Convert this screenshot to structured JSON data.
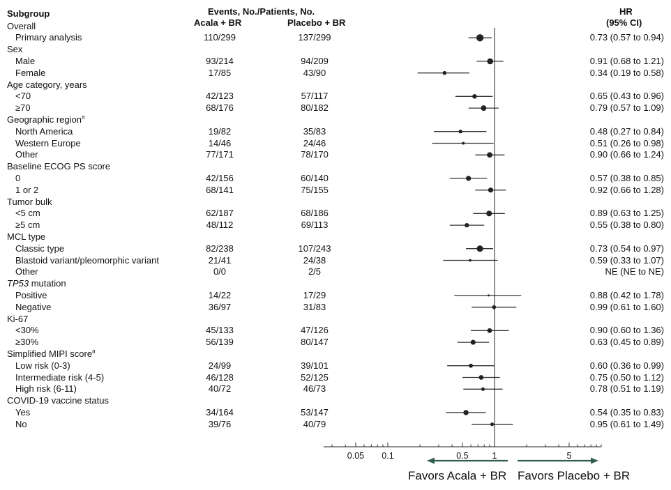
{
  "headers": {
    "subgroup": "Subgroup",
    "events": "Events, No./Patients, No.",
    "acala": "Acala + BR",
    "placebo": "Placebo + BR",
    "hr": "HR",
    "ci": "(95% CI)"
  },
  "footer": {
    "left": "Favors Acala + BR",
    "right": "Favors Placebo + BR"
  },
  "chart_data": {
    "type": "forest",
    "x_scale": "log",
    "x_ticks": [
      {
        "value": 0.05,
        "label": "0.05"
      },
      {
        "value": 0.1,
        "label": "0.1"
      },
      {
        "value": 0.5,
        "label": "0.5"
      },
      {
        "value": 1,
        "label": "1"
      },
      {
        "value": 5,
        "label": "5"
      }
    ],
    "xlim": [
      0.025,
      10
    ],
    "reference_line": 1,
    "rows": [
      {
        "label": "Overall",
        "group": true
      },
      {
        "label": "Primary analysis",
        "acala": "110/299",
        "placebo": "137/299",
        "hr": 0.73,
        "lo": 0.57,
        "hi": 0.94,
        "hr_text": "0.73 (0.57 to 0.94)",
        "n": 598
      },
      {
        "label": "Sex",
        "group": true
      },
      {
        "label": "Male",
        "acala": "93/214",
        "placebo": "94/209",
        "hr": 0.91,
        "lo": 0.68,
        "hi": 1.21,
        "hr_text": "0.91 (0.68 to 1.21)",
        "n": 423
      },
      {
        "label": "Female",
        "acala": "17/85",
        "placebo": "43/90",
        "hr": 0.34,
        "lo": 0.19,
        "hi": 0.58,
        "hr_text": "0.34 (0.19 to 0.58)",
        "n": 175
      },
      {
        "label": "Age category, years",
        "group": true
      },
      {
        "label": "<70",
        "acala": "42/123",
        "placebo": "57/117",
        "hr": 0.65,
        "lo": 0.43,
        "hi": 0.96,
        "hr_text": "0.65 (0.43 to 0.96)",
        "n": 240
      },
      {
        "label": "≥70",
        "acala": "68/176",
        "placebo": "80/182",
        "hr": 0.79,
        "lo": 0.57,
        "hi": 1.09,
        "hr_text": "0.79 (0.57 to 1.09)",
        "n": 358
      },
      {
        "label": "Geographic region",
        "sup": "a",
        "group": true
      },
      {
        "label": "North America",
        "acala": "19/82",
        "placebo": "35/83",
        "hr": 0.48,
        "lo": 0.27,
        "hi": 0.84,
        "hr_text": "0.48 (0.27 to 0.84)",
        "n": 165
      },
      {
        "label": "Western Europe",
        "acala": "14/46",
        "placebo": "24/46",
        "hr": 0.51,
        "lo": 0.26,
        "hi": 0.98,
        "hr_text": "0.51 (0.26 to 0.98)",
        "n": 92
      },
      {
        "label": "Other",
        "acala": "77/171",
        "placebo": "78/170",
        "hr": 0.9,
        "lo": 0.66,
        "hi": 1.24,
        "hr_text": "0.90 (0.66 to 1.24)",
        "n": 341
      },
      {
        "label": "Baseline ECOG PS score",
        "group": true
      },
      {
        "label": "0",
        "acala": "42/156",
        "placebo": "60/140",
        "hr": 0.57,
        "lo": 0.38,
        "hi": 0.85,
        "hr_text": "0.57 (0.38 to 0.85)",
        "n": 296
      },
      {
        "label": "1 or 2",
        "acala": "68/141",
        "placebo": "75/155",
        "hr": 0.92,
        "lo": 0.66,
        "hi": 1.28,
        "hr_text": "0.92 (0.66 to 1.28)",
        "n": 296
      },
      {
        "label": "Tumor bulk",
        "group": true
      },
      {
        "label": "<5 cm",
        "acala": "62/187",
        "placebo": "68/186",
        "hr": 0.89,
        "lo": 0.63,
        "hi": 1.25,
        "hr_text": "0.89 (0.63 to 1.25)",
        "n": 373
      },
      {
        "label": "≥5 cm",
        "acala": "48/112",
        "placebo": "69/113",
        "hr": 0.55,
        "lo": 0.38,
        "hi": 0.8,
        "hr_text": "0.55 (0.38 to 0.80)",
        "n": 225
      },
      {
        "label": "MCL type",
        "group": true
      },
      {
        "label": "Classic type",
        "acala": "82/238",
        "placebo": "107/243",
        "hr": 0.73,
        "lo": 0.54,
        "hi": 0.97,
        "hr_text": "0.73 (0.54 to 0.97)",
        "n": 481
      },
      {
        "label": "Blastoid variant/pleomorphic variant",
        "acala": "21/41",
        "placebo": "24/38",
        "hr": 0.59,
        "lo": 0.33,
        "hi": 1.07,
        "hr_text": "0.59 (0.33 to 1.07)",
        "n": 79
      },
      {
        "label": "Other",
        "acala": "0/0",
        "placebo": "2/5",
        "hr": null,
        "lo": null,
        "hi": null,
        "hr_text": "NE (NE to NE)",
        "n": 5
      },
      {
        "label": "TP53",
        "label_rest": " mutation",
        "italic": true,
        "group": true
      },
      {
        "label": "Positive",
        "acala": "14/22",
        "placebo": "17/29",
        "hr": 0.88,
        "lo": 0.42,
        "hi": 1.78,
        "hr_text": "0.88 (0.42 to 1.78)",
        "n": 51
      },
      {
        "label": "Negative",
        "acala": "36/97",
        "placebo": "31/83",
        "hr": 0.99,
        "lo": 0.61,
        "hi": 1.6,
        "hr_text": "0.99 (0.61 to 1.60)",
        "n": 180
      },
      {
        "label": "Ki-67",
        "group": true
      },
      {
        "label": "<30%",
        "acala": "45/133",
        "placebo": "47/126",
        "hr": 0.9,
        "lo": 0.6,
        "hi": 1.36,
        "hr_text": "0.90 (0.60 to 1.36)",
        "n": 259
      },
      {
        "label": "≥30%",
        "acala": "56/139",
        "placebo": "80/147",
        "hr": 0.63,
        "lo": 0.45,
        "hi": 0.89,
        "hr_text": "0.63 (0.45 to 0.89)",
        "n": 286
      },
      {
        "label": "Simplified MIPI score",
        "sup": "a",
        "group": true
      },
      {
        "label": "Low risk (0-3)",
        "acala": "24/99",
        "placebo": "39/101",
        "hr": 0.6,
        "lo": 0.36,
        "hi": 0.99,
        "hr_text": "0.60 (0.36 to 0.99)",
        "n": 200
      },
      {
        "label": "Intermediate risk (4-5)",
        "acala": "46/128",
        "placebo": "52/125",
        "hr": 0.75,
        "lo": 0.5,
        "hi": 1.12,
        "hr_text": "0.75 (0.50 to 1.12)",
        "n": 253
      },
      {
        "label": "High risk (6-11)",
        "acala": "40/72",
        "placebo": "46/73",
        "hr": 0.78,
        "lo": 0.51,
        "hi": 1.19,
        "hr_text": "0.78 (0.51 to  1.19)",
        "n": 145
      },
      {
        "label": "COVID-19 vaccine status",
        "group": true
      },
      {
        "label": "Yes",
        "acala": "34/164",
        "placebo": "53/147",
        "hr": 0.54,
        "lo": 0.35,
        "hi": 0.83,
        "hr_text": "0.54 (0.35 to 0.83)",
        "n": 311
      },
      {
        "label": "No",
        "acala": "39/76",
        "placebo": "40/79",
        "hr": 0.95,
        "lo": 0.61,
        "hi": 1.49,
        "hr_text": "0.95 (0.61 to 1.49)",
        "n": 155
      }
    ]
  }
}
